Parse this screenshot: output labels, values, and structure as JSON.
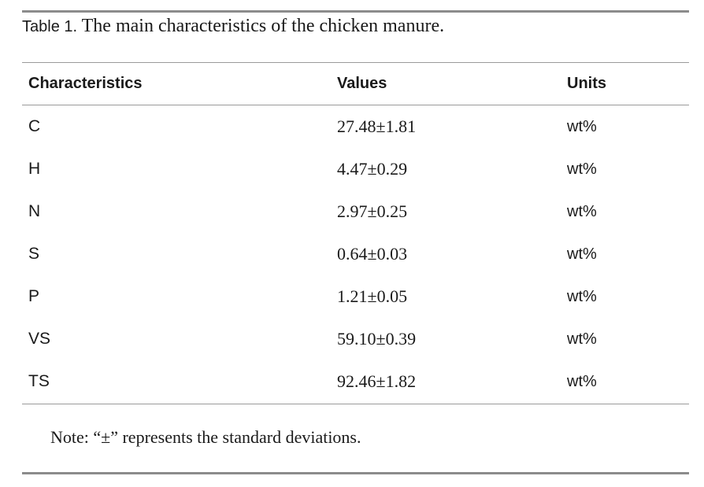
{
  "caption": {
    "label": "Table 1.",
    "text": "The main characteristics of the chicken manure."
  },
  "table": {
    "headers": [
      "Characteristics",
      "Values",
      "Units"
    ],
    "rows": [
      {
        "characteristic": "C",
        "value": "27.48±1.81",
        "unit": "wt%"
      },
      {
        "characteristic": "H",
        "value": "4.47±0.29",
        "unit": "wt%"
      },
      {
        "characteristic": "N",
        "value": "2.97±0.25",
        "unit": "wt%"
      },
      {
        "characteristic": "S",
        "value": "0.64±0.03",
        "unit": "wt%"
      },
      {
        "characteristic": "P",
        "value": "1.21±0.05",
        "unit": "wt%"
      },
      {
        "characteristic": "VS",
        "value": "59.10±0.39",
        "unit": "wt%"
      },
      {
        "characteristic": "TS",
        "value": "92.46±1.82",
        "unit": "wt%"
      }
    ]
  },
  "note": "Note: “±” represents the standard deviations."
}
